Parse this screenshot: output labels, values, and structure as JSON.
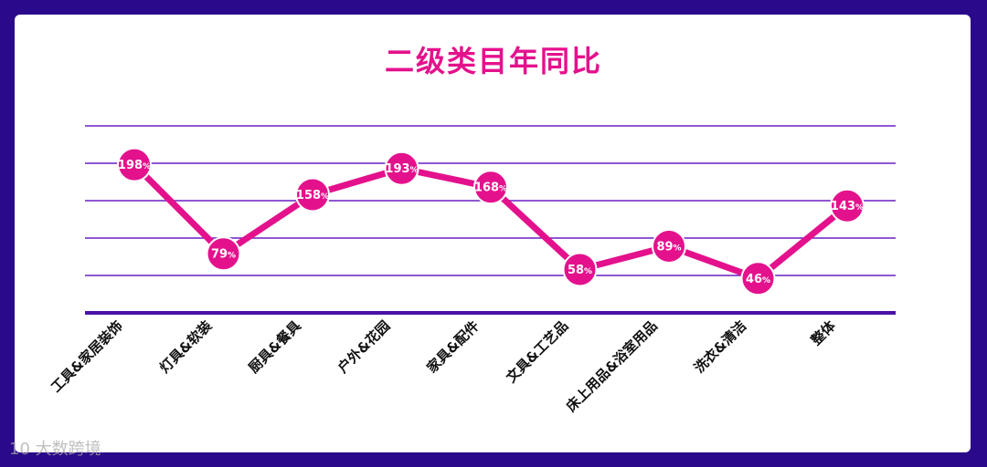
{
  "colors": {
    "background": "#2a0a8a",
    "card": "#ffffff",
    "title": "#e4118d",
    "line": "#e4118d",
    "grid": "#6a1fc4",
    "axis": "#4b0fa8",
    "label": "#111111"
  },
  "watermark": {
    "text": "大数跨境",
    "logo": "10"
  },
  "chart_data": {
    "type": "line",
    "title": "二级类目年同比",
    "categories": [
      "工具&家居装饰",
      "灯具&软装",
      "厨具&餐具",
      "户外&花园",
      "家具&配件",
      "文具&工艺品",
      "床上用品&浴室用品",
      "洗衣&清洁",
      "整体"
    ],
    "values": [
      198,
      79,
      158,
      193,
      168,
      58,
      89,
      46,
      143
    ],
    "value_labels": [
      "198",
      "79",
      "158",
      "193",
      "168",
      "58",
      "89",
      "46",
      "143"
    ],
    "unit": "%",
    "ylim": [
      0,
      250
    ],
    "grid": true,
    "legend": "none"
  }
}
